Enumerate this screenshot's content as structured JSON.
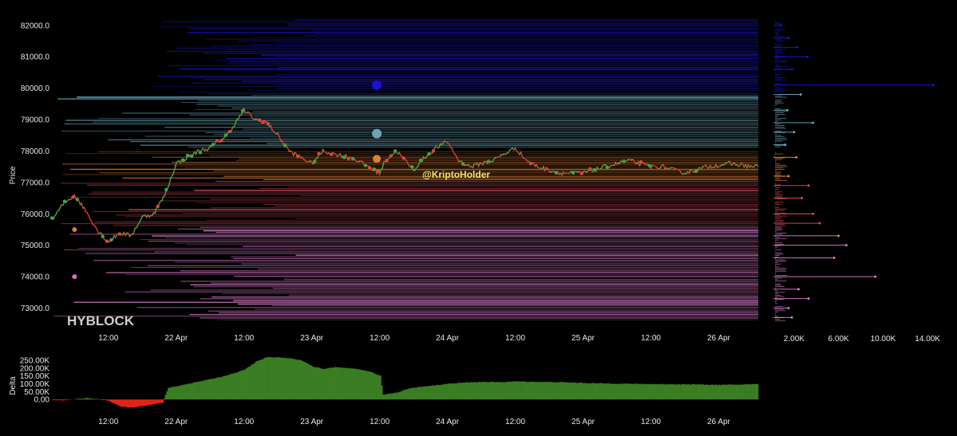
{
  "watermark": "HYBLOCK",
  "handle": "@KriptoHolder",
  "colors": {
    "background": "#000000",
    "candle_up": "#3ea83e",
    "candle_down": "#e2433a",
    "delta_pos": "#3a7d23",
    "delta_neg": "#e02518",
    "liq_high": "#1c14e6",
    "liq_mid": "#6fb2c8",
    "liq_orange": "#f08a3c",
    "liq_red": "#ea4f5e",
    "liq_pink": "#e783d8"
  },
  "chart_data": [
    {
      "type": "line",
      "ylabel": "Price",
      "xlabel": "",
      "ylim": [
        72200,
        82300
      ],
      "y_ticks": [
        "82000.0",
        "81000.0",
        "80000.0",
        "79000.0",
        "78000.0",
        "77000.0",
        "76000.0",
        "75000.0",
        "74000.0",
        "73000.0"
      ],
      "x_ticks": [
        "12:00",
        "22 Apr",
        "12:00",
        "23 Apr",
        "12:00",
        "24 Apr",
        "12:00",
        "25 Apr",
        "12:00",
        "26 Apr"
      ],
      "x_tick_hours": [
        12,
        24,
        36,
        48,
        60,
        72,
        84,
        96,
        108,
        120
      ],
      "x_range_hours": [
        2,
        127
      ],
      "price_series": {
        "name": "",
        "hours": [
          2,
          4,
          6,
          8,
          10,
          12,
          14,
          16,
          18,
          20,
          22,
          24,
          26,
          28,
          30,
          33,
          36,
          38,
          40,
          42,
          44,
          46,
          48,
          50,
          52,
          55,
          58,
          60,
          61,
          63,
          66,
          68,
          70,
          72,
          74,
          76,
          78,
          80,
          84,
          86,
          88,
          92,
          96,
          100,
          104,
          108,
          110,
          114,
          118,
          122,
          126
        ],
        "values": [
          75800,
          76300,
          76600,
          76100,
          75500,
          75100,
          75400,
          75300,
          75900,
          76000,
          76600,
          77600,
          77800,
          78000,
          78100,
          78500,
          79300,
          79000,
          78900,
          78500,
          78000,
          77800,
          77600,
          78000,
          77900,
          77800,
          77500,
          77300,
          77700,
          78000,
          77400,
          77800,
          78100,
          78300,
          77700,
          77500,
          77600,
          77700,
          78100,
          77700,
          77500,
          77300,
          77300,
          77500,
          77700,
          77500,
          77500,
          77300,
          77500,
          77600,
          77500
        ]
      },
      "liquidation_levels": {
        "description": "",
        "bands": [
          {
            "from": 79800,
            "to": 82200,
            "color_key": "liq_high"
          },
          {
            "from": 78100,
            "to": 79800,
            "color_key": "liq_mid"
          },
          {
            "from": 77000,
            "to": 78000,
            "color_key": "liq_orange"
          },
          {
            "from": 75600,
            "to": 77000,
            "color_key": "liq_red"
          },
          {
            "from": 72600,
            "to": 75600,
            "color_key": "liq_pink"
          }
        ]
      },
      "markers": [
        {
          "hour": 59.5,
          "price": 80100,
          "color_key": "liq_high",
          "size": 6
        },
        {
          "hour": 59.5,
          "price": 78550,
          "color_key": "liq_mid",
          "size": 6
        },
        {
          "hour": 59.5,
          "price": 77750,
          "color_key": "liq_orange",
          "size": 5
        },
        {
          "hour": 6,
          "price": 75500,
          "color_key": "liq_orange",
          "size": 3
        },
        {
          "hour": 6,
          "price": 74000,
          "color_key": "liq_pink",
          "size": 3
        }
      ]
    },
    {
      "type": "bar",
      "xlabel": "",
      "ylabel": "",
      "x_ticks": [
        "2.00K",
        "6.00K",
        "10.00K",
        "14.00K"
      ],
      "x_tick_values": [
        2000,
        6000,
        10000,
        14000
      ],
      "xlim": [
        0,
        16000
      ],
      "description": "",
      "levels": [
        {
          "price": 82000,
          "size": 800,
          "color_key": "liq_high"
        },
        {
          "price": 81600,
          "size": 1500,
          "color_key": "liq_high"
        },
        {
          "price": 81300,
          "size": 2300,
          "color_key": "liq_high"
        },
        {
          "price": 81000,
          "size": 3200,
          "color_key": "liq_high"
        },
        {
          "price": 80600,
          "size": 1800,
          "color_key": "liq_high"
        },
        {
          "price": 80100,
          "size": 14500,
          "color_key": "liq_high"
        },
        {
          "price": 79800,
          "size": 2600,
          "color_key": "liq_mid"
        },
        {
          "price": 79300,
          "size": 1400,
          "color_key": "liq_mid"
        },
        {
          "price": 78900,
          "size": 3700,
          "color_key": "liq_mid"
        },
        {
          "price": 78600,
          "size": 2000,
          "color_key": "liq_mid"
        },
        {
          "price": 78200,
          "size": 1200,
          "color_key": "liq_mid"
        },
        {
          "price": 77800,
          "size": 2200,
          "color_key": "liq_orange"
        },
        {
          "price": 77200,
          "size": 1500,
          "color_key": "liq_orange"
        },
        {
          "price": 76900,
          "size": 3300,
          "color_key": "liq_red"
        },
        {
          "price": 76500,
          "size": 2700,
          "color_key": "liq_red"
        },
        {
          "price": 76000,
          "size": 3700,
          "color_key": "liq_red"
        },
        {
          "price": 75700,
          "size": 4300,
          "color_key": "liq_red"
        },
        {
          "price": 75300,
          "size": 6000,
          "color_key": "liq_pink"
        },
        {
          "price": 75000,
          "size": 6700,
          "color_key": "liq_pink"
        },
        {
          "price": 74600,
          "size": 5600,
          "color_key": "liq_pink"
        },
        {
          "price": 74000,
          "size": 9300,
          "color_key": "liq_pink"
        },
        {
          "price": 73600,
          "size": 2400,
          "color_key": "liq_pink"
        },
        {
          "price": 73300,
          "size": 3300,
          "color_key": "liq_pink"
        },
        {
          "price": 73000,
          "size": 1500,
          "color_key": "liq_pink"
        },
        {
          "price": 72700,
          "size": 1800,
          "color_key": "liq_pink"
        }
      ]
    },
    {
      "type": "area",
      "ylabel": "Delta",
      "xlabel": "",
      "ylim": [
        -70000,
        280000
      ],
      "y_ticks": [
        "250.00K",
        "200.00K",
        "150.00K",
        "100.00K",
        "50.00K",
        "0.00"
      ],
      "y_tick_values": [
        250000,
        200000,
        150000,
        100000,
        50000,
        0
      ],
      "x_ticks": [
        "12:00",
        "22 Apr",
        "12:00",
        "23 Apr",
        "12:00",
        "24 Apr",
        "12:00",
        "25 Apr",
        "12:00",
        "26 Apr"
      ],
      "x_tick_hours": [
        12,
        24,
        36,
        48,
        60,
        72,
        84,
        96,
        108,
        120
      ],
      "x_range_hours": [
        2,
        127
      ],
      "series": {
        "name": "",
        "hours": [
          2,
          4,
          6,
          8,
          10,
          12,
          14,
          16,
          18,
          20,
          21.5,
          22,
          22.5,
          24,
          26,
          28,
          30,
          32,
          34,
          36,
          38,
          40,
          42,
          44,
          46,
          48,
          50,
          52,
          54,
          56,
          58,
          60,
          60.5,
          63,
          65,
          67,
          70,
          72,
          75,
          78,
          81,
          84,
          88,
          92,
          96,
          100,
          104,
          108,
          112,
          116,
          120,
          124,
          127
        ],
        "values": [
          -5000,
          -6000,
          2000,
          9000,
          1000,
          -8000,
          -45000,
          -52000,
          -40000,
          -30000,
          -20000,
          30000,
          75000,
          85000,
          100000,
          115000,
          130000,
          145000,
          165000,
          190000,
          240000,
          270000,
          268000,
          262000,
          250000,
          210000,
          195000,
          205000,
          200000,
          192000,
          180000,
          150000,
          30000,
          45000,
          70000,
          80000,
          92000,
          100000,
          108000,
          112000,
          110000,
          115000,
          112000,
          110000,
          105000,
          102000,
          100000,
          98000,
          97000,
          96000,
          93000,
          95000,
          100000
        ]
      }
    }
  ]
}
